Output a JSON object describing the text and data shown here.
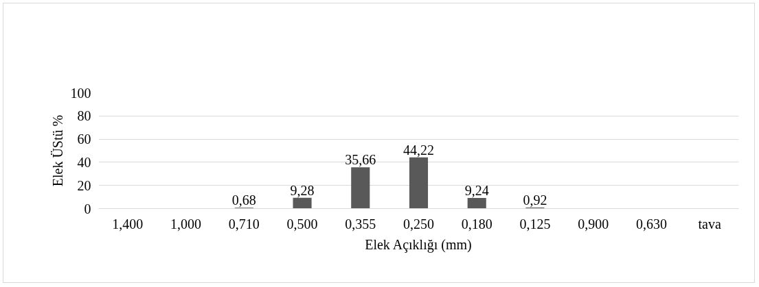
{
  "chart_data": {
    "type": "bar",
    "xlabel": "Elek Açıklığı (mm)",
    "ylabel": "Elek ÜStü %",
    "categories": [
      "1,400",
      "1,000",
      "0,710",
      "0,500",
      "0,355",
      "0,250",
      "0,180",
      "0,125",
      "0,900",
      "0,630",
      "tava"
    ],
    "values": [
      null,
      null,
      0.68,
      9.28,
      35.66,
      44.22,
      9.24,
      0.92,
      null,
      null,
      null
    ],
    "value_labels": [
      null,
      null,
      "0,68",
      "9,28",
      "35,66",
      "44,22",
      "9,24",
      "0,92",
      null,
      null,
      null
    ],
    "color": "#595959",
    "ylim": [
      0,
      100
    ],
    "yticks": [
      0,
      20,
      40,
      60,
      80,
      100
    ],
    "grid": "y"
  }
}
